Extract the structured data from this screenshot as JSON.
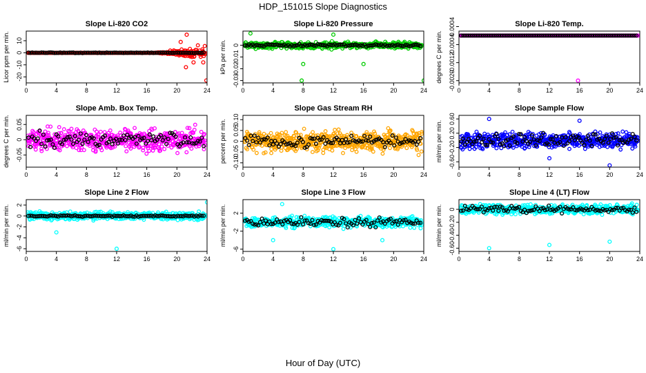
{
  "figure": {
    "title": "HDP_151015  Slope Diagnostics",
    "xlabel": "Hour of Day (UTC)"
  },
  "chart_data": [
    {
      "type": "scatter",
      "title": "Slope Li-820 CO2",
      "ylabel": "Licor ppm per min.",
      "xlim": [
        0,
        24
      ],
      "xticks": [
        0,
        4,
        8,
        12,
        16,
        20,
        24
      ],
      "ylim": [
        -25,
        18
      ],
      "yticks": [
        -20,
        -10,
        0,
        10
      ],
      "colors": {
        "primary": "#ff0000",
        "secondary": "#000000"
      },
      "primary_band": 0,
      "secondary_band": 0.4,
      "tail_from": 17,
      "tail_band": 8,
      "outliers": [
        {
          "x": 21.3,
          "y": 15
        },
        {
          "x": 21.2,
          "y": -12
        },
        {
          "x": 23.9,
          "y": -23
        },
        {
          "x": 23.5,
          "y": -8
        },
        {
          "x": 22.2,
          "y": -8
        },
        {
          "x": 20.5,
          "y": 9
        }
      ]
    },
    {
      "type": "scatter",
      "title": "Slope Li-820 Pressure",
      "ylabel": "kPa per min.",
      "xlim": [
        0,
        24
      ],
      "xticks": [
        0,
        4,
        8,
        12,
        16,
        20,
        24
      ],
      "ylim": [
        -0.032,
        0.012
      ],
      "yticks": [
        -0.03,
        -0.02,
        -0.01,
        0.0
      ],
      "colors": {
        "primary": "#00cc00",
        "secondary": "#000000"
      },
      "primary_band": 0.004,
      "secondary_band": 0.0015,
      "outliers": [
        {
          "x": 8,
          "y": -0.016
        },
        {
          "x": 12,
          "y": 0.009
        },
        {
          "x": 16,
          "y": -0.016
        },
        {
          "x": 24,
          "y": -0.03
        },
        {
          "x": 7.8,
          "y": -0.03
        },
        {
          "x": 1,
          "y": 0.01
        }
      ]
    },
    {
      "type": "scatter",
      "title": "Slope Li-820 Temp.",
      "ylabel": "degrees C per min.",
      "xlim": [
        0,
        24
      ],
      "xticks": [
        0,
        4,
        8,
        12,
        16,
        20,
        24
      ],
      "ylim": [
        -0.0021,
        0.0002
      ],
      "yticks": [
        -0.002,
        -0.0012,
        -0.0004,
        0.0004
      ],
      "colors": {
        "primary": "#ff00ff",
        "secondary": "#000000"
      },
      "primary_band": 0,
      "secondary_band": 0,
      "outliers": [
        {
          "x": 15.8,
          "y": -0.002
        }
      ]
    },
    {
      "type": "scatter",
      "title": "Slope Amb. Box Temp.",
      "ylabel": "degrees C per min.",
      "xlim": [
        0,
        24
      ],
      "xticks": [
        0,
        4,
        8,
        12,
        16,
        20,
        24
      ],
      "ylim": [
        -0.09,
        0.08
      ],
      "yticks": [
        -0.05,
        0.0,
        0.05
      ],
      "colors": {
        "primary": "#ff00ff",
        "secondary": "#000000"
      },
      "primary_band": 0.055,
      "secondary_band": 0.035,
      "outliers": []
    },
    {
      "type": "scatter",
      "title": "Slope Gas Stream RH",
      "ylabel": "percent per min.",
      "xlim": [
        0,
        24
      ],
      "xticks": [
        0,
        4,
        8,
        12,
        16,
        20,
        24
      ],
      "ylim": [
        -0.12,
        0.12
      ],
      "yticks": [
        -0.1,
        -0.05,
        0.0,
        0.05,
        0.1
      ],
      "colors": {
        "primary": "#ffa500",
        "secondary": "#000000"
      },
      "primary_band": 0.07,
      "secondary_band": 0.04,
      "outliers": []
    },
    {
      "type": "scatter",
      "title": "Slope Sample Flow",
      "ylabel": "ml/min per min.",
      "xlim": [
        0,
        24
      ],
      "xticks": [
        0,
        4,
        8,
        12,
        16,
        20,
        24
      ],
      "ylim": [
        -0.75,
        0.7
      ],
      "yticks": [
        -0.6,
        -0.2,
        0.2,
        0.6
      ],
      "colors": {
        "primary": "#0000ff",
        "secondary": "#000000"
      },
      "primary_band": 0.3,
      "secondary_band": 0.25,
      "outliers": [
        {
          "x": 4,
          "y": 0.6
        },
        {
          "x": 12,
          "y": -0.5
        },
        {
          "x": 20,
          "y": -0.7
        },
        {
          "x": 16,
          "y": 0.55
        }
      ]
    },
    {
      "type": "scatter",
      "title": "Slope Line 2 Flow",
      "ylabel": "ml/min per min.",
      "xlim": [
        0,
        24
      ],
      "xticks": [
        0,
        4,
        8,
        12,
        16,
        20,
        24
      ],
      "ylim": [
        -6.5,
        3
      ],
      "yticks": [
        -6,
        -4,
        -2,
        0,
        2
      ],
      "colors": {
        "primary": "#00ffff",
        "secondary": "#000000"
      },
      "primary_band": 1,
      "secondary_band": 0.2,
      "outliers": [
        {
          "x": 12,
          "y": -6
        },
        {
          "x": 4,
          "y": -3
        },
        {
          "x": 24,
          "y": 2.5
        }
      ]
    },
    {
      "type": "scatter",
      "title": "Slope Line 3 Flow",
      "ylabel": "ml/min per min.",
      "xlim": [
        0,
        24
      ],
      "xticks": [
        0,
        4,
        8,
        12,
        16,
        20,
        24
      ],
      "ylim": [
        -6.5,
        5
      ],
      "yticks": [
        -6,
        -2,
        2
      ],
      "colors": {
        "primary": "#00ffff",
        "secondary": "#000000"
      },
      "primary_band": 1.6,
      "secondary_band": 1.4,
      "outliers": [
        {
          "x": 12,
          "y": -6
        },
        {
          "x": 4,
          "y": -4
        },
        {
          "x": 5.2,
          "y": 4
        },
        {
          "x": 18.5,
          "y": -4
        }
      ]
    },
    {
      "type": "scatter",
      "title": "Slope Line 4 (LT) Flow",
      "ylabel": "ml/min per min.",
      "xlim": [
        0,
        24
      ],
      "xticks": [
        0,
        4,
        8,
        12,
        16,
        20,
        24
      ],
      "ylim": [
        -0.65,
        0.15
      ],
      "yticks": [
        -0.6,
        -0.4,
        -0.2,
        0.0
      ],
      "colors": {
        "primary": "#00ffff",
        "secondary": "#000000"
      },
      "primary_band": 0.1,
      "secondary_band": 0.08,
      "outliers": [
        {
          "x": 4,
          "y": -0.6
        },
        {
          "x": 12,
          "y": -0.55
        },
        {
          "x": 20,
          "y": -0.5
        }
      ]
    }
  ]
}
